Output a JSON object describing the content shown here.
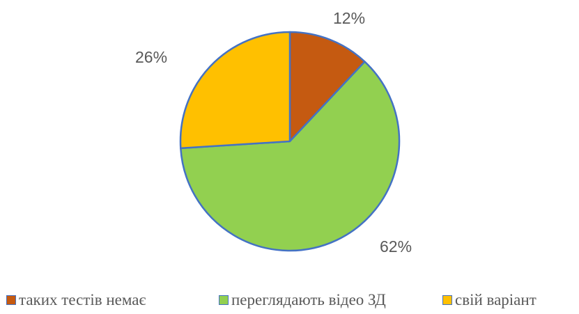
{
  "chart_data": {
    "type": "pie",
    "title": "",
    "start_angle_deg": 0,
    "direction": "clockwise",
    "slice_border_color": "#4472C4",
    "slices": [
      {
        "label": "таких тестів немає",
        "value": 12,
        "value_label": "12%",
        "color": "#C55A11"
      },
      {
        "label": "переглядають відео ЗД",
        "value": 62,
        "value_label": "62%",
        "color": "#92D050"
      },
      {
        "label": "свій варіант",
        "value": 26,
        "value_label": "26%",
        "color": "#FFC000"
      }
    ],
    "legend": {
      "position": "bottom",
      "items": [
        "таких тестів немає",
        "переглядають відео ЗД",
        "свій варіант"
      ]
    }
  }
}
